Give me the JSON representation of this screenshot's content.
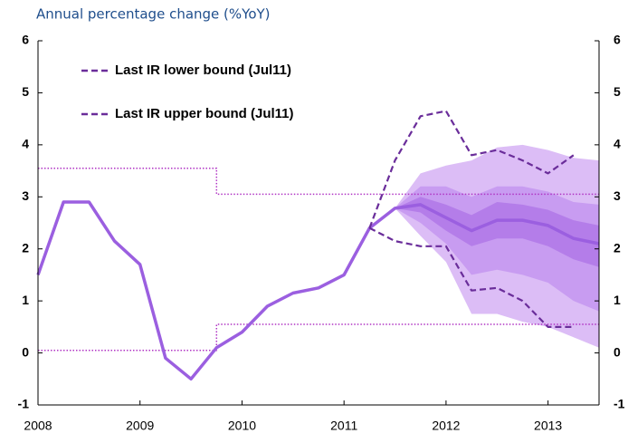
{
  "chart_data": {
    "type": "line",
    "title": "Annual percentage change (%YoY)",
    "xlim": [
      2008,
      2013.5
    ],
    "xticks": [
      2008,
      2009,
      2010,
      2011,
      2012,
      2013
    ],
    "ylim": [
      -1,
      6
    ],
    "yticks": [
      -1,
      0,
      1,
      2,
      3,
      4,
      5,
      6
    ],
    "y2lim": [
      -1,
      6
    ],
    "y2ticks": [
      -1,
      0,
      1,
      2,
      3,
      4,
      5,
      6
    ],
    "bands": [
      {
        "color": "#dcbdf6",
        "x": [
          2011.5,
          2011.75,
          2012,
          2012.25,
          2012.5,
          2012.75,
          2013,
          2013.25,
          2013.5
        ],
        "upper": [
          2.78,
          3.45,
          3.6,
          3.7,
          3.95,
          4.0,
          3.9,
          3.75,
          3.7
        ],
        "lower": [
          2.78,
          2.25,
          1.75,
          0.75,
          0.75,
          0.6,
          0.5,
          0.3,
          0.1
        ]
      },
      {
        "color": "#c89cf1",
        "x": [
          2011.5,
          2011.75,
          2012,
          2012.25,
          2012.5,
          2012.75,
          2013,
          2013.25,
          2013.5
        ],
        "upper": [
          2.78,
          3.2,
          3.2,
          3.0,
          3.2,
          3.2,
          3.1,
          2.9,
          2.85
        ],
        "lower": [
          2.78,
          2.5,
          2.1,
          1.5,
          1.6,
          1.5,
          1.35,
          1.0,
          0.8
        ]
      },
      {
        "color": "#b47de9",
        "x": [
          2011.5,
          2011.75,
          2012,
          2012.25,
          2012.5,
          2012.75,
          2013,
          2013.25,
          2013.5
        ],
        "upper": [
          2.78,
          3.0,
          2.85,
          2.65,
          2.9,
          2.85,
          2.75,
          2.55,
          2.45
        ],
        "lower": [
          2.78,
          2.7,
          2.35,
          2.05,
          2.2,
          2.2,
          2.05,
          1.8,
          1.65
        ]
      }
    ],
    "reference_lines": [
      {
        "color": "#b034c4",
        "x": [
          2008,
          2009.75,
          2009.75,
          2013.5
        ],
        "values": [
          3.55,
          3.55,
          3.05,
          3.05
        ]
      },
      {
        "color": "#b034c4",
        "x": [
          2008,
          2009.75,
          2009.75,
          2013.5
        ],
        "values": [
          0.05,
          0.05,
          0.55,
          0.55
        ]
      }
    ],
    "series": [
      {
        "color": "#9b5fe0",
        "style": "solid",
        "x": [
          2008,
          2008.25,
          2008.5,
          2008.75,
          2009,
          2009.25,
          2009.5,
          2009.75,
          2010,
          2010.25,
          2010.5,
          2010.75,
          2011,
          2011.25,
          2011.5,
          2011.75,
          2012,
          2012.25,
          2012.5,
          2012.75,
          2013,
          2013.25,
          2013.5
        ],
        "values": [
          1.5,
          2.9,
          2.9,
          2.15,
          1.7,
          -0.1,
          -0.5,
          0.1,
          0.4,
          0.9,
          1.15,
          1.25,
          1.5,
          2.4,
          2.78,
          2.85,
          2.6,
          2.35,
          2.55,
          2.55,
          2.45,
          2.2,
          2.1
        ]
      },
      {
        "name": "Last IR lower bound (Jul11)",
        "color": "#6a2d9a",
        "style": "dashed",
        "x": [
          2011.25,
          2011.5,
          2011.75,
          2012,
          2012.25,
          2012.5,
          2012.75,
          2013,
          2013.25
        ],
        "values": [
          2.4,
          2.15,
          2.05,
          2.05,
          1.2,
          1.25,
          1.0,
          0.5,
          0.5
        ]
      },
      {
        "name": "Last IR upper bound (Jul11)",
        "color": "#6a2d9a",
        "style": "dashed",
        "x": [
          2011.25,
          2011.5,
          2011.75,
          2012,
          2012.25,
          2012.5,
          2012.75,
          2013,
          2013.25
        ],
        "values": [
          2.4,
          3.7,
          4.55,
          4.65,
          3.8,
          3.9,
          3.7,
          3.45,
          3.8
        ]
      }
    ]
  }
}
